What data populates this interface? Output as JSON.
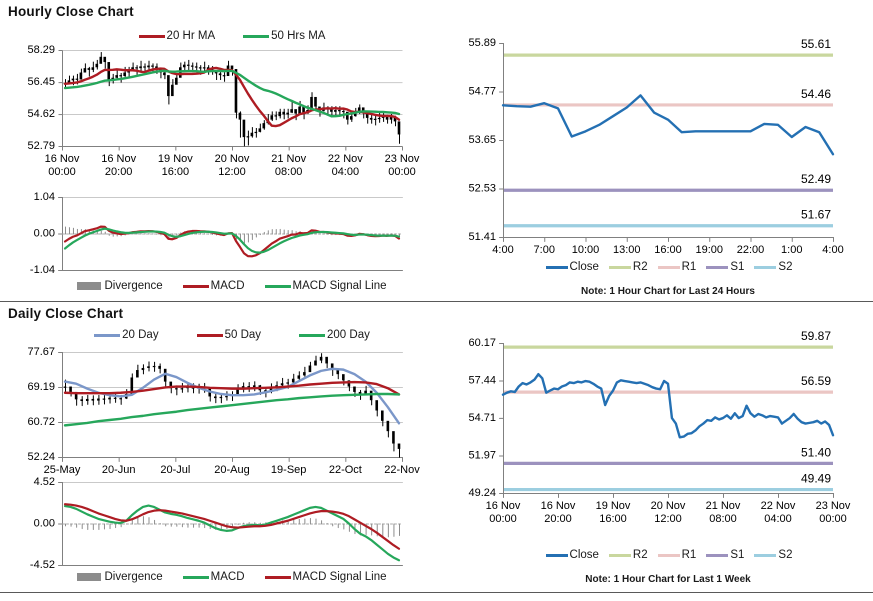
{
  "palette": {
    "grid": "#C9C9C9",
    "axis": "#808080",
    "candle": "#000000",
    "divider": "#595959",
    "zero_dots": "#A8A8A8",
    "text": "#000000"
  },
  "chart_data": [
    {
      "id": "hourly_price",
      "type": "candlestick",
      "title": "Hourly Close Chart",
      "ylim": [
        52.79,
        58.29
      ],
      "y_ticks": [
        "58.29",
        "56.45",
        "54.62",
        "52.79"
      ],
      "x_ticks": [
        [
          "16 Nov",
          "00:00"
        ],
        [
          "16 Nov",
          "20:00"
        ],
        [
          "19 Nov",
          "16:00"
        ],
        [
          "20 Nov",
          "12:00"
        ],
        [
          "21 Nov",
          "08:00"
        ],
        [
          "22 Nov",
          "04:00"
        ],
        [
          "23 Nov",
          "00:00"
        ]
      ],
      "close": [
        56.4,
        56.55,
        56.65,
        56.6,
        57.0,
        57.25,
        57.15,
        57.3,
        57.5,
        57.9,
        57.6,
        56.55,
        56.7,
        56.85,
        56.8,
        57.0,
        57.1,
        57.3,
        57.25,
        57.35,
        57.3,
        57.4,
        57.35,
        57.2,
        57.0,
        56.85,
        55.65,
        56.3,
        56.7,
        57.3,
        57.45,
        57.4,
        57.35,
        57.3,
        57.25,
        57.3,
        57.2,
        57.1,
        56.95,
        56.85,
        56.8,
        57.4,
        57.2,
        54.7,
        54.3,
        53.3,
        53.35,
        53.55,
        53.6,
        53.8,
        54.1,
        54.3,
        54.55,
        54.5,
        54.75,
        54.6,
        54.7,
        54.9,
        54.65,
        55.05,
        54.7,
        54.85,
        55.6,
        55.05,
        54.8,
        55.0,
        54.9,
        54.75,
        54.85,
        54.8,
        54.75,
        54.3,
        54.5,
        54.7,
        55.0,
        54.65,
        54.4,
        54.3,
        54.35,
        54.4,
        54.5,
        54.3,
        54.45,
        54.2,
        53.45
      ],
      "high": [
        56.65,
        56.85,
        56.85,
        56.95,
        57.25,
        57.55,
        57.35,
        57.65,
        57.75,
        58.2,
        57.8,
        57.4,
        56.95,
        57.15,
        57.0,
        57.35,
        57.35,
        57.6,
        57.45,
        57.7,
        57.55,
        57.7,
        57.55,
        57.55,
        57.25,
        57.15,
        56.6,
        56.65,
        56.95,
        57.6,
        57.65,
        57.75,
        57.6,
        57.6,
        57.45,
        57.65,
        57.45,
        57.4,
        57.15,
        57.2,
        57.05,
        57.7,
        57.4,
        57.0,
        54.8,
        53.8,
        53.7,
        53.9,
        53.85,
        54.1,
        54.3,
        54.65,
        54.8,
        54.8,
        54.95,
        54.95,
        54.95,
        55.45,
        54.85,
        55.4,
        54.95,
        55.15,
        55.9,
        55.4,
        55.05,
        55.3,
        55.1,
        55.1,
        55.1,
        55.1,
        54.95,
        54.65,
        54.75,
        55.0,
        55.2,
        55.0,
        54.65,
        54.6,
        54.55,
        54.75,
        54.75,
        54.6,
        54.65,
        54.55,
        54.1
      ],
      "low": [
        56.1,
        56.35,
        56.3,
        56.35,
        56.7,
        57.05,
        56.8,
        57.05,
        57.2,
        57.55,
        57.25,
        56.25,
        56.4,
        56.65,
        56.45,
        56.75,
        56.8,
        57.1,
        56.9,
        57.1,
        57.0,
        57.2,
        57.0,
        56.95,
        56.7,
        56.65,
        55.2,
        56.05,
        56.4,
        57.1,
        57.1,
        57.15,
        57.05,
        57.1,
        56.9,
        57.05,
        56.9,
        56.9,
        56.6,
        56.6,
        56.5,
        57.2,
        56.85,
        54.4,
        53.3,
        52.8,
        52.85,
        53.3,
        53.3,
        53.6,
        53.75,
        54.05,
        54.25,
        54.3,
        54.4,
        54.35,
        54.4,
        54.7,
        54.3,
        54.8,
        54.35,
        54.65,
        55.1,
        54.8,
        54.5,
        54.8,
        54.55,
        54.5,
        54.55,
        54.6,
        54.4,
        54.05,
        54.2,
        54.5,
        54.65,
        54.4,
        54.1,
        54.1,
        54.0,
        54.15,
        54.2,
        54.1,
        54.1,
        53.95,
        52.95
      ],
      "ma": [
        {
          "label": "20 Hr MA",
          "window": 10,
          "color": "#AE1C23"
        },
        {
          "label": "50 Hrs MA",
          "window": 25,
          "color": "#26A75B"
        }
      ]
    },
    {
      "id": "hourly_macd",
      "type": "macd",
      "ylim": [
        -1.04,
        1.04
      ],
      "y_ticks": [
        "1.04",
        "0.00",
        "-1.04"
      ],
      "source": "hourly_price",
      "fast": 6,
      "slow": 13,
      "signal_window": 5,
      "scale": 0.65,
      "macd_color": "#AE1C23",
      "signal_color": "#26A75B",
      "divergence_color": "#8C8C8C",
      "legend": [
        {
          "label": "Divergence",
          "color": "#8C8C8C"
        },
        {
          "label": "MACD",
          "color": "#AE1C23"
        },
        {
          "label": "MACD Signal Line",
          "color": "#26A75B"
        }
      ]
    },
    {
      "id": "day_levels",
      "type": "levels",
      "ylim": [
        51.41,
        55.89
      ],
      "y_ticks": [
        "55.89",
        "54.77",
        "53.65",
        "52.53",
        "51.41"
      ],
      "x_ticks": [
        "4:00",
        "7:00",
        "10:00",
        "13:00",
        "16:00",
        "19:00",
        "22:00",
        "1:00",
        "4:00"
      ],
      "close": [
        54.45,
        54.43,
        54.42,
        54.5,
        54.38,
        53.73,
        53.85,
        54.0,
        54.2,
        54.4,
        54.68,
        54.28,
        54.12,
        53.83,
        53.85,
        53.85,
        53.85,
        53.85,
        53.85,
        54.02,
        54.0,
        53.72,
        53.95,
        53.83,
        53.32
      ],
      "close_label": "Close",
      "close_color": "#2470B3",
      "levels": [
        {
          "label": "R2",
          "value": 55.61,
          "color": "#C9D79E"
        },
        {
          "label": "R1",
          "value": 54.46,
          "color": "#EBC6C4"
        },
        {
          "label": "S1",
          "value": 52.49,
          "color": "#9C92BE"
        },
        {
          "label": "S2",
          "value": 51.67,
          "color": "#9CCEE0"
        }
      ],
      "note": "Note: 1 Hour Chart for Last 24 Hours"
    },
    {
      "id": "daily_price",
      "type": "candlestick",
      "title": "Daily Close Chart",
      "ylim": [
        52.24,
        77.67
      ],
      "y_ticks": [
        "77.67",
        "69.19",
        "60.72",
        "52.24"
      ],
      "x_ticks": [
        "25-May",
        "20-Jun",
        "20-Jul",
        "20-Aug",
        "19-Sep",
        "22-Oct",
        "22-Nov"
      ],
      "close": [
        69.3,
        68.0,
        66.2,
        65.8,
        66.3,
        65.9,
        66.4,
        66.2,
        66.6,
        66.5,
        66.4,
        67.5,
        71.5,
        73.3,
        73.8,
        74.2,
        74.3,
        73.6,
        70.5,
        68.9,
        68.7,
        68.9,
        69.3,
        68.8,
        69.1,
        69.0,
        66.9,
        66.5,
        66.8,
        67.0,
        67.3,
        68.6,
        69.4,
        69.2,
        69.6,
        68.4,
        68.2,
        68.9,
        69.6,
        70.1,
        70.3,
        71.2,
        72.0,
        72.8,
        74.4,
        75.6,
        76.5,
        74.9,
        73.3,
        72.3,
        70.8,
        69.3,
        68.0,
        67.6,
        68.3,
        66.0,
        63.5,
        61.0,
        58.5,
        55.5,
        54.2
      ],
      "high": [
        71.0,
        69.3,
        67.1,
        67.0,
        67.3,
        67.2,
        67.3,
        67.4,
        67.6,
        67.8,
        67.3,
        68.7,
        72.5,
        74.6,
        74.7,
        75.4,
        75.3,
        74.9,
        72.4,
        70.1,
        69.6,
        70.2,
        70.3,
        70.1,
        70.0,
        70.2,
        68.5,
        67.7,
        67.7,
        68.2,
        68.2,
        69.9,
        70.3,
        70.4,
        70.6,
        69.7,
        69.1,
        70.1,
        70.6,
        71.4,
        71.2,
        72.4,
        73.0,
        74.1,
        75.3,
        76.8,
        77.4,
        76.3,
        74.3,
        73.5,
        72.2,
        70.7,
        69.3,
        68.5,
        69.5,
        67.8,
        65.3,
        62.8,
        60.3,
        57.3,
        55.5
      ],
      "low": [
        68.1,
        67.1,
        64.9,
        64.8,
        65.1,
        65.0,
        65.1,
        65.2,
        65.4,
        65.6,
        65.1,
        66.5,
        69.0,
        72.4,
        72.5,
        73.2,
        73.1,
        72.7,
        69.2,
        67.9,
        67.4,
        68.0,
        68.1,
        67.9,
        67.8,
        68.0,
        65.9,
        65.5,
        65.5,
        66.1,
        66.0,
        67.6,
        68.1,
        68.2,
        68.4,
        67.5,
        66.9,
        67.9,
        68.4,
        69.2,
        69.0,
        70.2,
        70.8,
        71.9,
        73.1,
        74.6,
        75.2,
        74.0,
        72.1,
        71.3,
        69.8,
        68.4,
        67.0,
        66.3,
        67.4,
        65.0,
        62.3,
        59.9,
        57.2,
        53.8,
        52.3
      ],
      "ma": [
        {
          "label": "20 Day",
          "color": "#7B97C9",
          "step": 2,
          "values": [
            70.5,
            70.0,
            68.8,
            67.8,
            67.2,
            66.9,
            67.3,
            69.0,
            71.0,
            72.4,
            71.6,
            70.2,
            69.0,
            68.1,
            67.5,
            67.2,
            67.2,
            67.4,
            67.9,
            68.5,
            69.2,
            70.6,
            72.0,
            73.1,
            73.6,
            73.4,
            72.3,
            70.5,
            67.8,
            64.3,
            60.4
          ]
        },
        {
          "label": "50 Day",
          "color": "#AE1C23",
          "step": 2,
          "values": [
            67.8,
            67.7,
            67.7,
            67.7,
            67.7,
            67.8,
            68.0,
            68.3,
            68.7,
            69.1,
            69.3,
            69.3,
            69.2,
            69.0,
            68.9,
            68.8,
            68.8,
            68.9,
            69.0,
            69.1,
            69.3,
            69.5,
            69.8,
            70.0,
            70.2,
            70.3,
            70.4,
            70.3,
            69.9,
            68.9,
            67.4
          ]
        },
        {
          "label": "200 Day",
          "color": "#26A75B",
          "step": 2,
          "values": [
            59.9,
            60.2,
            60.5,
            60.9,
            61.2,
            61.5,
            61.9,
            62.2,
            62.6,
            62.9,
            63.2,
            63.6,
            63.9,
            64.2,
            64.5,
            64.8,
            65.1,
            65.4,
            65.7,
            66.0,
            66.2,
            66.5,
            66.7,
            66.9,
            67.1,
            67.2,
            67.3,
            67.4,
            67.5,
            67.5,
            67.4
          ]
        }
      ]
    },
    {
      "id": "daily_macd",
      "type": "macd",
      "ylim": [
        -4.52,
        4.52
      ],
      "y_ticks": [
        "4.52",
        "0.00",
        "-4.52"
      ],
      "macd": [
        1.9,
        1.8,
        1.6,
        1.3,
        1.0,
        0.75,
        0.5,
        0.35,
        0.2,
        0.1,
        0.05,
        0.3,
        0.9,
        1.4,
        1.8,
        1.95,
        1.8,
        1.5,
        1.2,
        1.05,
        0.95,
        0.8,
        0.6,
        0.45,
        0.3,
        0.1,
        -0.2,
        -0.5,
        -0.7,
        -0.8,
        -0.75,
        -0.5,
        -0.3,
        -0.2,
        -0.15,
        -0.2,
        -0.1,
        0.1,
        0.3,
        0.5,
        0.7,
        0.95,
        1.2,
        1.45,
        1.7,
        1.8,
        1.7,
        1.4,
        1.1,
        0.8,
        0.5,
        0.0,
        -0.6,
        -1.1,
        -1.4,
        -1.8,
        -2.3,
        -2.8,
        -3.3,
        -3.7,
        -4.0
      ],
      "signal": [
        2.1,
        2.05,
        1.95,
        1.8,
        1.6,
        1.35,
        1.1,
        0.9,
        0.7,
        0.5,
        0.35,
        0.3,
        0.45,
        0.7,
        1.0,
        1.25,
        1.4,
        1.45,
        1.4,
        1.3,
        1.2,
        1.1,
        0.95,
        0.8,
        0.65,
        0.5,
        0.3,
        0.1,
        -0.1,
        -0.3,
        -0.4,
        -0.45,
        -0.4,
        -0.35,
        -0.3,
        -0.3,
        -0.25,
        -0.15,
        0.0,
        0.15,
        0.3,
        0.5,
        0.7,
        0.9,
        1.1,
        1.25,
        1.35,
        1.35,
        1.3,
        1.2,
        1.05,
        0.8,
        0.45,
        0.1,
        -0.25,
        -0.6,
        -1.0,
        -1.45,
        -1.9,
        -2.35,
        -2.75
      ],
      "macd_color": "#26A75B",
      "signal_color": "#AE1C23",
      "divergence_color": "#8C8C8C",
      "legend": [
        {
          "label": "Divergence",
          "color": "#8C8C8C"
        },
        {
          "label": "MACD",
          "color": "#26A75B"
        },
        {
          "label": "MACD Signal Line",
          "color": "#AE1C23"
        }
      ]
    },
    {
      "id": "week_levels",
      "type": "levels",
      "ylim": [
        49.24,
        60.17
      ],
      "y_ticks": [
        "60.17",
        "57.44",
        "54.71",
        "51.97",
        "49.24"
      ],
      "x_ticks": [
        [
          "16 Nov",
          "00:00"
        ],
        [
          "16 Nov",
          "20:00"
        ],
        [
          "19 Nov",
          "16:00"
        ],
        [
          "20 Nov",
          "12:00"
        ],
        [
          "21 Nov",
          "08:00"
        ],
        [
          "22 Nov",
          "04:00"
        ],
        [
          "23 Nov",
          "00:00"
        ]
      ],
      "close_source": "hourly_price",
      "close_label": "Close",
      "close_color": "#2470B3",
      "levels": [
        {
          "label": "R2",
          "value": 59.87,
          "color": "#C9D79E"
        },
        {
          "label": "R1",
          "value": 56.59,
          "color": "#EBC6C4"
        },
        {
          "label": "S1",
          "value": 51.4,
          "color": "#9C92BE"
        },
        {
          "label": "S2",
          "value": 49.49,
          "color": "#9CCEE0"
        }
      ],
      "note": "Note: 1 Hour Chart for Last 1 Week"
    }
  ]
}
